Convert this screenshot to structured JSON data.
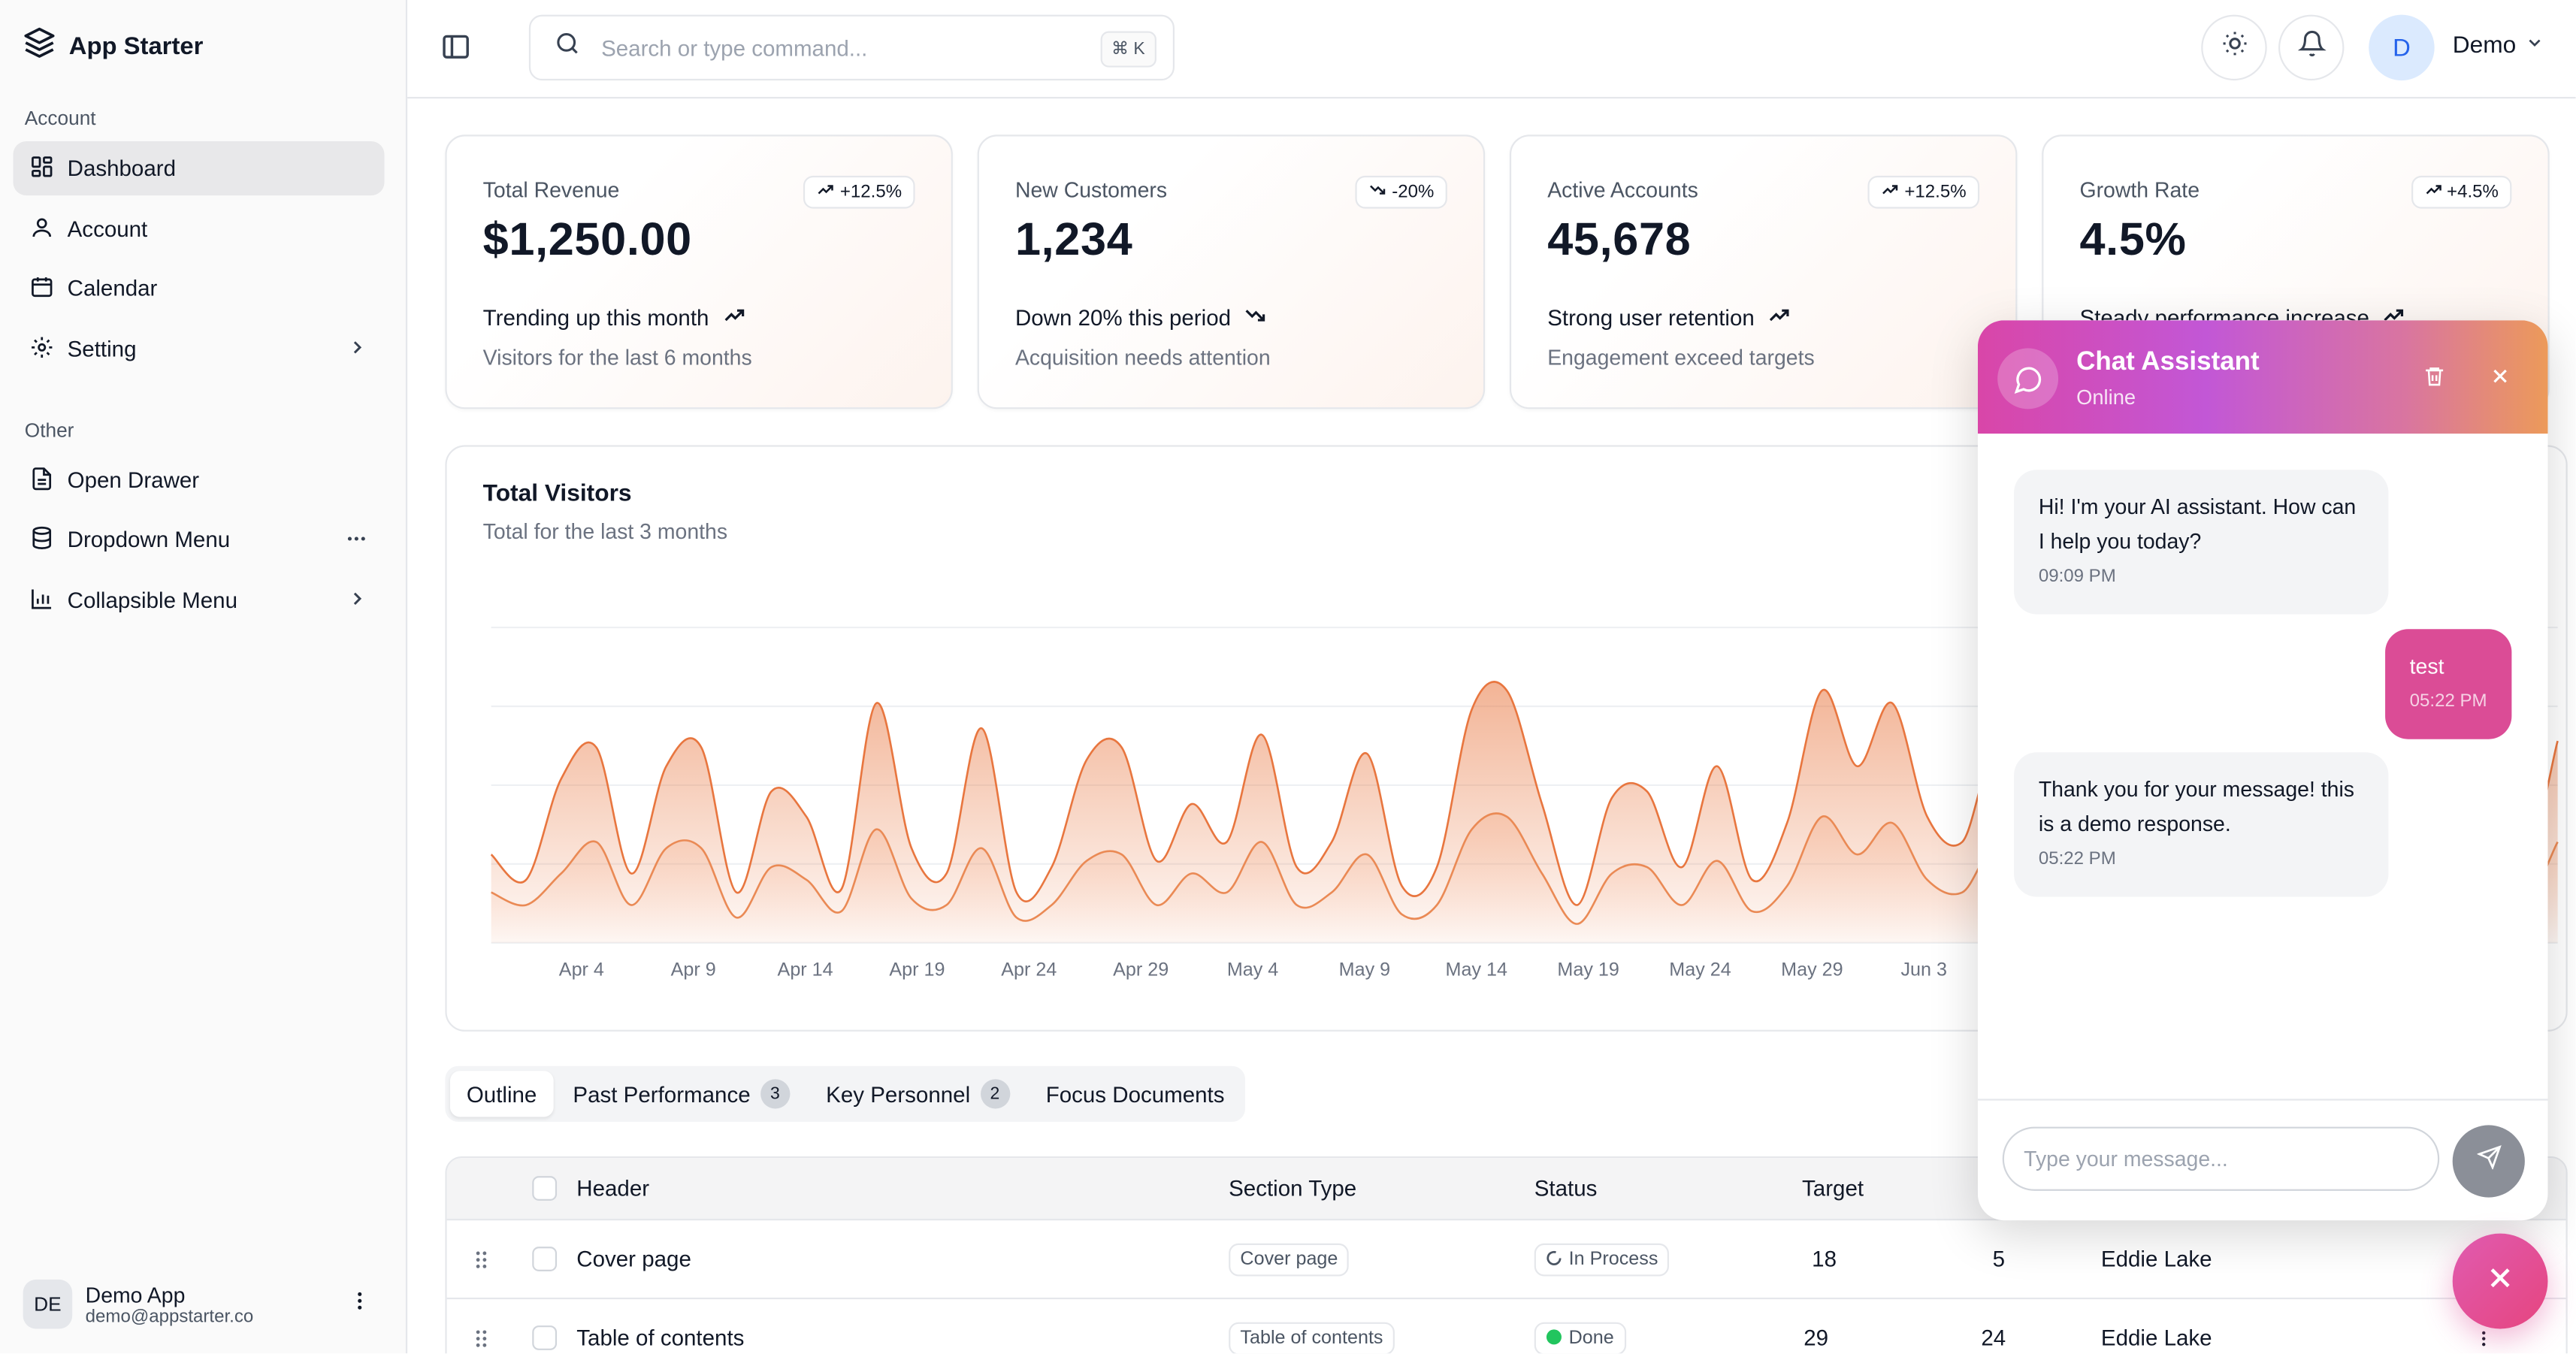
{
  "app": {
    "name": "App Starter"
  },
  "sidebar": {
    "group1_label": "Account",
    "group2_label": "Other",
    "items": [
      {
        "label": "Dashboard",
        "icon": "dashboard-icon"
      },
      {
        "label": "Account",
        "icon": "user-icon"
      },
      {
        "label": "Calendar",
        "icon": "calendar-icon"
      },
      {
        "label": "Setting",
        "icon": "gear-icon"
      }
    ],
    "other_items": [
      {
        "label": "Open Drawer",
        "icon": "document-icon"
      },
      {
        "label": "Dropdown Menu",
        "icon": "database-icon"
      },
      {
        "label": "Collapsible Menu",
        "icon": "bar-chart-icon"
      }
    ],
    "user": {
      "initials": "DE",
      "name": "Demo App",
      "email": "demo@appstarter.co"
    }
  },
  "header": {
    "search_placeholder": "Search or type command...",
    "shortcut": "⌘ K",
    "user_initial": "D",
    "user_name": "Demo"
  },
  "cards": [
    {
      "label": "Total Revenue",
      "value": "$1,250.00",
      "badge": "+12.5%",
      "trend": "Trending up this month",
      "sub": "Visitors for the last 6 months",
      "direction": "up"
    },
    {
      "label": "New Customers",
      "value": "1,234",
      "badge": "-20%",
      "trend": "Down 20% this period",
      "sub": "Acquisition needs attention",
      "direction": "down"
    },
    {
      "label": "Active Accounts",
      "value": "45,678",
      "badge": "+12.5%",
      "trend": "Strong user retention",
      "sub": "Engagement exceed targets",
      "direction": "up"
    },
    {
      "label": "Growth Rate",
      "value": "4.5%",
      "badge": "+4.5%",
      "trend": "Steady performance increase",
      "sub": "",
      "direction": "up"
    }
  ],
  "chart_data": {
    "type": "area",
    "title": "Total Visitors",
    "subtitle": "Total for the last 3 months",
    "xlabel": "",
    "ylabel": "",
    "ylim": [
      0,
      500
    ],
    "grid": true,
    "tick_labels": [
      "Apr 4",
      "Apr 9",
      "Apr 14",
      "Apr 19",
      "Apr 24",
      "Apr 29",
      "May 4",
      "May 9",
      "May 14",
      "May 19",
      "May 24",
      "May 29",
      "Jun 3"
    ],
    "series": [
      {
        "name": "desktop",
        "values": [
          140,
          100,
          260,
          310,
          110,
          280,
          310,
          80,
          240,
          200,
          85,
          380,
          150,
          110,
          340,
          80,
          120,
          290,
          310,
          130,
          220,
          160,
          330,
          120,
          160,
          300,
          90,
          120,
          370,
          400,
          220,
          60,
          230,
          240,
          120,
          280,
          100,
          190,
          400,
          280,
          380,
          200,
          160,
          300,
          50,
          180,
          230,
          190,
          90,
          320,
          280,
          90,
          360,
          250,
          180,
          240,
          140,
          380,
          130,
          320
        ]
      },
      {
        "name": "mobile",
        "values": [
          80,
          60,
          110,
          160,
          60,
          150,
          150,
          40,
          120,
          100,
          50,
          180,
          70,
          60,
          150,
          40,
          60,
          130,
          140,
          60,
          110,
          80,
          160,
          60,
          80,
          140,
          45,
          60,
          180,
          200,
          110,
          30,
          110,
          120,
          60,
          130,
          50,
          90,
          200,
          140,
          190,
          100,
          80,
          150,
          25,
          90,
          110,
          95,
          45,
          150,
          140,
          45,
          170,
          120,
          90,
          120,
          70,
          180,
          65,
          160
        ]
      }
    ]
  },
  "tabs": [
    {
      "label": "Outline",
      "count": ""
    },
    {
      "label": "Past Performance",
      "count": "3"
    },
    {
      "label": "Key Personnel",
      "count": "2"
    },
    {
      "label": "Focus Documents",
      "count": ""
    }
  ],
  "table": {
    "columns": [
      "Header",
      "Section Type",
      "Status",
      "Target"
    ],
    "rows": [
      {
        "header": "Cover page",
        "type": "Cover page",
        "status": "In Process",
        "status_kind": "process",
        "target": "18",
        "limit": "5",
        "reviewer": "Eddie Lake"
      },
      {
        "header": "Table of contents",
        "type": "Table of contents",
        "status": "Done",
        "status_kind": "done",
        "target": "29",
        "limit": "24",
        "reviewer": "Eddie Lake"
      }
    ]
  },
  "chat": {
    "title": "Chat Assistant",
    "status": "Online",
    "messages": [
      {
        "from": "bot",
        "text": "Hi! I'm your AI assistant. How can I help you today?",
        "time": "09:09 PM"
      },
      {
        "from": "user",
        "text": "test",
        "time": "05:22 PM"
      },
      {
        "from": "bot",
        "text": "Thank you for your message! this is a demo response.",
        "time": "05:22 PM"
      }
    ],
    "input_placeholder": "Type your message..."
  },
  "colors": {
    "accent": "#e8763f",
    "chat_user_bubble": "#db4c96",
    "done": "#22c55e"
  }
}
